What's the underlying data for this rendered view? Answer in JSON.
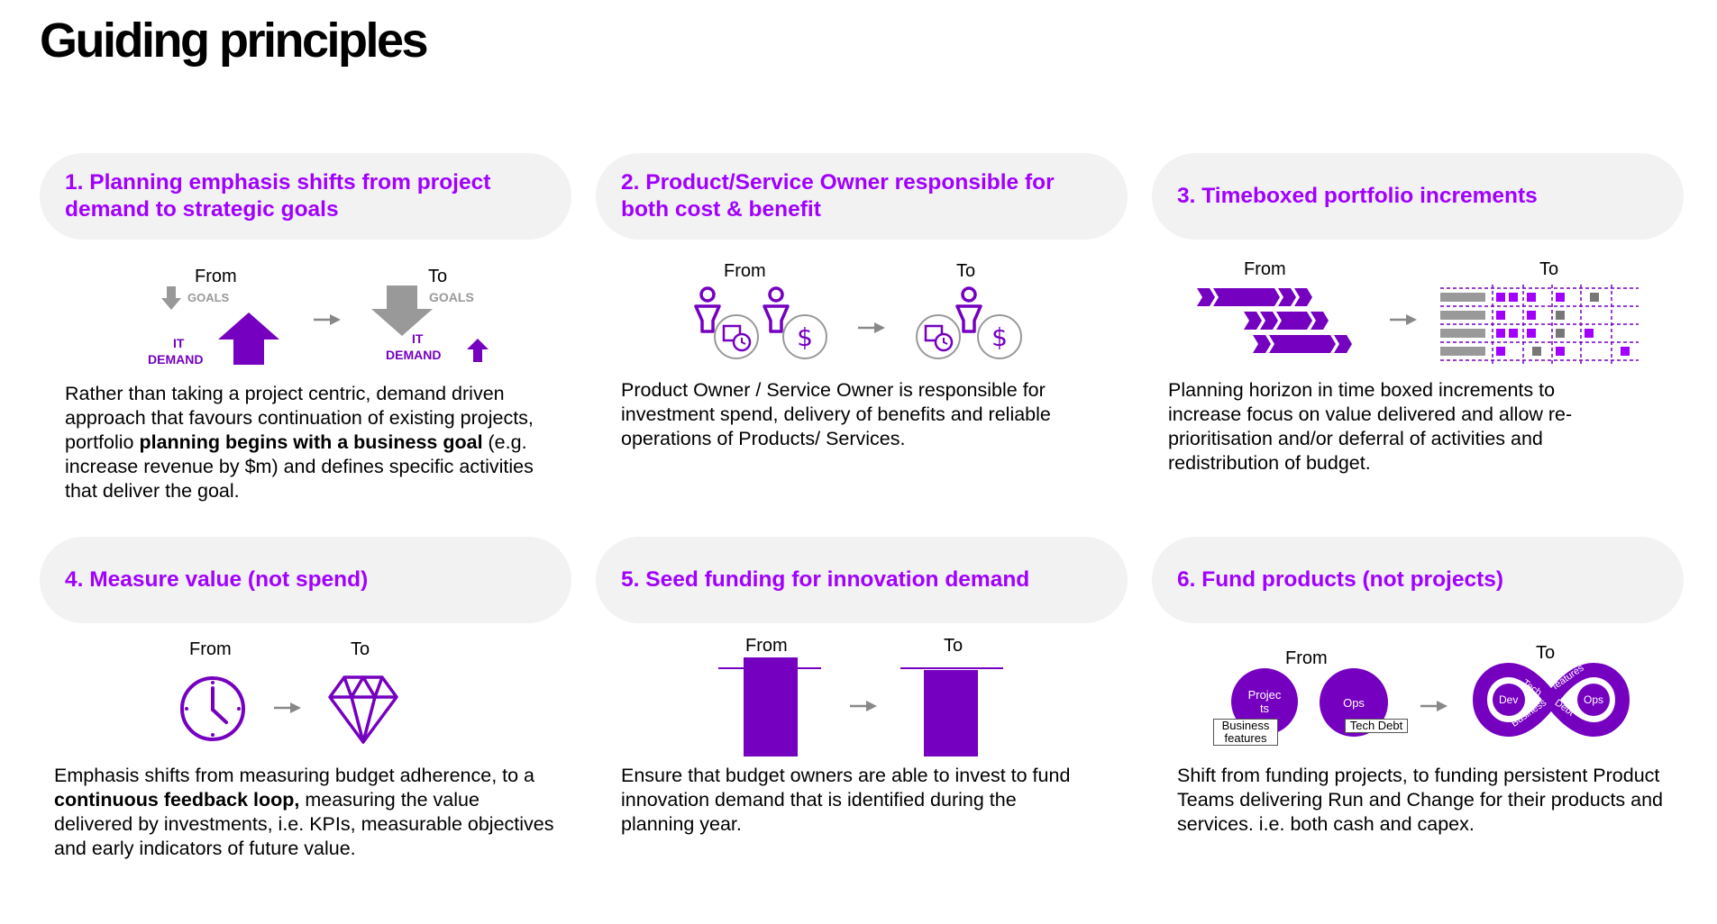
{
  "title": "Guiding principles",
  "colors": {
    "accent": "#a100ff",
    "dark_purple": "#7500c0",
    "pill_bg": "#f2f2f2",
    "gray": "#999999"
  },
  "cards": [
    {
      "heading": "1. Planning emphasis shifts from project demand to strategic goals",
      "from": "From",
      "to": "To",
      "goals": "GOALS",
      "it": "IT",
      "demand": "DEMAND",
      "desc_1": "Rather than taking a project centric, demand driven approach that favours continuation of existing projects,  portfolio ",
      "desc_b1": "planning begins with a business goal",
      "desc_2": " (e.g. increase revenue by $m) and defines specific activities that deliver the goal."
    },
    {
      "heading": "2. Product/Service Owner responsible for both cost & benefit",
      "from": "From",
      "to": "To",
      "desc": "Product Owner / Service Owner is responsible for investment spend, delivery of benefits and reliable operations of Products/ Services."
    },
    {
      "heading": "3. Timeboxed portfolio increments",
      "from": "From",
      "to": "To",
      "desc": "Planning horizon in time boxed increments to increase focus on value delivered and allow re-prioritisation and/or deferral of  activities and redistribution of budget."
    },
    {
      "heading": "4. Measure value (not spend)",
      "from": "From",
      "to": "To",
      "desc_1": "Emphasis shifts from measuring budget adherence, to a ",
      "desc_b1": "continuous feedback loop,",
      "desc_2": " measuring the value delivered by investments, i.e. KPIs, measurable objectives and early indicators of future value."
    },
    {
      "heading": "5. Seed funding for innovation demand",
      "from": "From",
      "to": "To",
      "desc": "Ensure that budget owners are able to invest  to fund innovation demand that is identified during the planning year."
    },
    {
      "heading": "6. Fund products (not projects)",
      "from": "From",
      "to": "To",
      "projects": "Projec ts",
      "ops": "Ops",
      "business_features": "Business features",
      "tech_debt": "Tech Debt",
      "dev": "Dev",
      "ops_to": "Ops",
      "loop_tech": "Tech",
      "loop_features": "features",
      "loop_business": "Business",
      "loop_debt": "Debt",
      "desc": "Shift from funding projects, to funding persistent Product Teams delivering Run and Change for their products and services. i.e. both cash and capex."
    }
  ]
}
